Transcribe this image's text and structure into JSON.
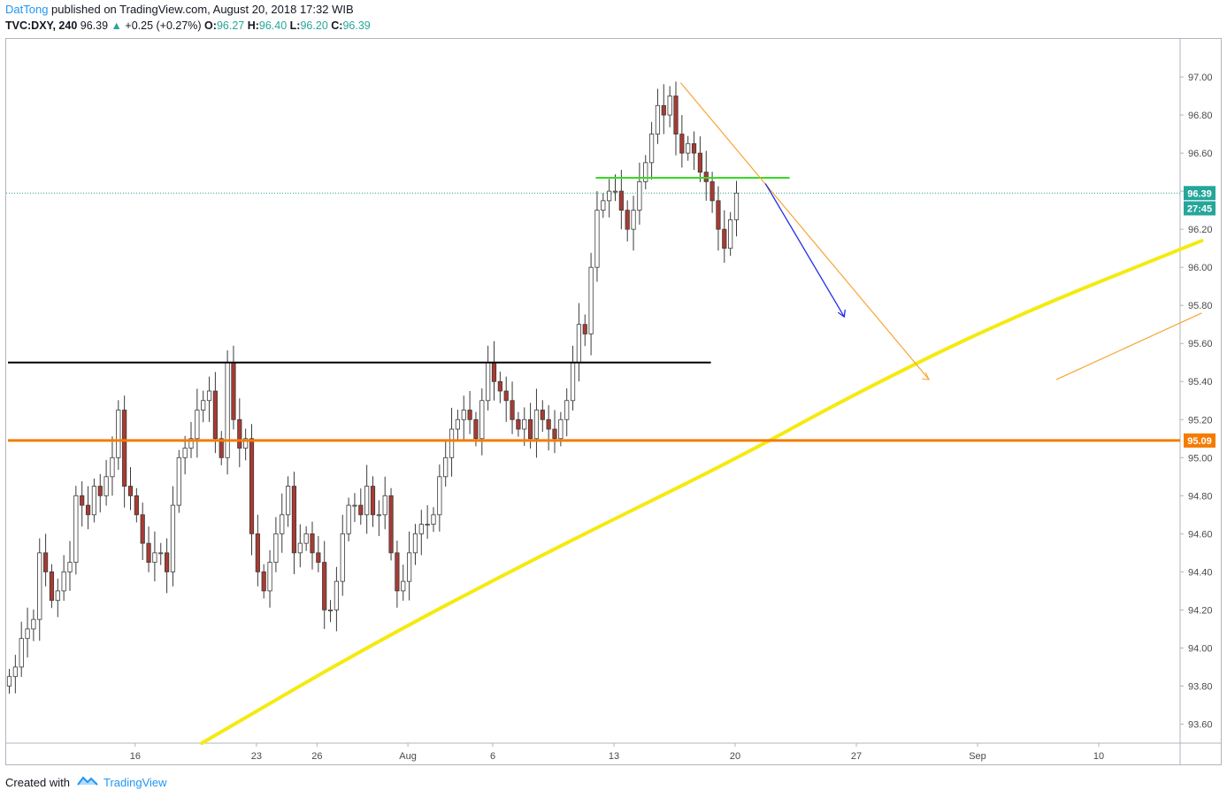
{
  "header": {
    "author": "DatTong",
    "published_text": "published on TradingView.com, August 20, 2018 17:32 WIB",
    "symbol": "TVC:DXY, 240",
    "last": "96.39",
    "change": "+0.25 (+0.27%)",
    "o_label": "O:",
    "o_value": "96.27",
    "h_label": "H:",
    "h_value": "96.40",
    "l_label": "L:",
    "l_value": "96.20",
    "c_label": "C:",
    "c_value": "96.39"
  },
  "footer": {
    "created_with": "Created with",
    "brand": "TradingView"
  },
  "colors": {
    "up": "#26a69a",
    "down": "#ef5350",
    "candle_body_up": "#ffffff",
    "candle_body_down": "#a93a33",
    "trend_yellow": "#f5ea10",
    "support_orange": "#f57c00",
    "resistance_black": "#000000",
    "green_line": "#33dd22",
    "arrow_blue": "#1f2ee8",
    "trend_orange_thin": "#f7a533"
  },
  "chart_data": {
    "type": "candlestick",
    "symbol": "TVC:DXY",
    "interval": "240",
    "ylim": [
      93.5,
      97.2
    ],
    "yticks": [
      "97.00",
      "96.80",
      "96.60",
      "96.40",
      "96.20",
      "96.00",
      "95.80",
      "95.60",
      "95.40",
      "95.20",
      "95.00",
      "94.80",
      "94.60",
      "94.40",
      "94.20",
      "94.00",
      "93.80",
      "93.60"
    ],
    "price_badges": [
      {
        "text": "96.39",
        "value": 96.39,
        "color": "#26a69a"
      },
      {
        "text": "27:45",
        "value": 96.31,
        "color": "#26a69a"
      },
      {
        "text": "95.09",
        "value": 95.09,
        "color": "#f57c00"
      }
    ],
    "xticks": [
      {
        "label": "16",
        "i": 21
      },
      {
        "label": "23",
        "i": 41
      },
      {
        "label": "26",
        "i": 51
      },
      {
        "label": "Aug",
        "i": 66
      },
      {
        "label": "6",
        "i": 80
      },
      {
        "label": "13",
        "i": 100
      },
      {
        "label": "20",
        "i": 120
      },
      {
        "label": "27",
        "i": 140
      },
      {
        "label": "Sep",
        "i": 160
      },
      {
        "label": "10",
        "i": 180
      }
    ],
    "current_price": 96.39,
    "horizontal_lines": [
      {
        "name": "resistance",
        "value": 95.5,
        "from_i": 0,
        "to_i": 116,
        "color": "#000000"
      },
      {
        "name": "support",
        "value": 95.09,
        "from_i": 0,
        "to_i": 195,
        "color": "#f57c00"
      },
      {
        "name": "neckline",
        "value": 96.47,
        "from_i": 97,
        "to_i": 129,
        "color": "#33dd22"
      }
    ],
    "candles_seed": [
      93.85,
      93.9,
      94.05,
      94.1,
      94.15,
      94.5,
      94.4,
      94.25,
      94.3,
      94.4,
      94.45,
      94.8,
      94.75,
      94.7,
      94.85,
      94.8,
      94.9,
      95.0,
      95.25,
      94.85,
      94.8,
      94.7,
      94.55,
      94.45,
      94.5,
      94.5,
      94.4,
      94.75,
      95.0,
      95.05,
      95.1,
      95.25,
      95.3,
      95.35,
      95.1,
      95.0,
      95.5,
      95.2,
      95.05,
      95.1,
      94.6,
      94.4,
      94.3,
      94.45,
      94.6,
      94.7,
      94.85,
      94.5,
      94.55,
      94.6,
      94.5,
      94.45,
      94.2,
      94.2,
      94.35,
      94.6,
      94.75,
      94.75,
      94.7,
      94.85,
      94.7,
      94.7,
      94.8,
      94.5,
      94.3,
      94.35,
      94.5,
      94.6,
      94.65,
      94.65,
      94.7,
      94.9,
      95.0,
      95.15,
      95.2,
      95.25,
      95.2,
      95.1,
      95.3,
      95.5,
      95.4,
      95.35,
      95.3,
      95.2,
      95.15,
      95.2,
      95.1,
      95.25,
      95.2,
      95.15,
      95.1,
      95.2,
      95.3,
      95.5,
      95.7,
      95.65,
      96.0,
      96.3,
      96.35,
      96.4,
      96.4,
      96.3,
      96.2,
      96.3,
      96.45,
      96.55,
      96.7,
      96.85,
      96.8,
      96.9,
      96.7,
      96.6,
      96.65,
      96.6,
      96.5,
      96.45,
      96.35,
      96.2,
      96.1,
      96.25,
      96.39
    ],
    "trend_lines": [
      {
        "name": "descending-trendline",
        "from": {
          "i": 111,
          "v": 96.97
        },
        "to": {
          "i": 152,
          "v": 95.41
        },
        "color": "#f7a533",
        "width": 1.2
      },
      {
        "name": "ascending-trendline-thin",
        "from": {
          "i": 173,
          "v": 95.41
        },
        "to": {
          "i": 197,
          "v": 95.76
        },
        "color": "#f7a533",
        "width": 1.2
      }
    ],
    "curves": [
      {
        "name": "rising-curve",
        "points": [
          [
            32,
            93.5
          ],
          [
            60,
            94.02
          ],
          [
            90,
            94.52
          ],
          [
            120,
            94.99
          ],
          [
            140,
            95.34
          ],
          [
            165,
            95.73
          ],
          [
            197,
            96.14
          ]
        ],
        "color": "#f5ea10",
        "width": 4
      }
    ],
    "arrows": [
      {
        "name": "projection-arrow",
        "from": {
          "i": 125,
          "v": 96.44
        },
        "to": {
          "i": 138,
          "v": 95.74
        },
        "color": "#1f2ee8"
      }
    ]
  }
}
